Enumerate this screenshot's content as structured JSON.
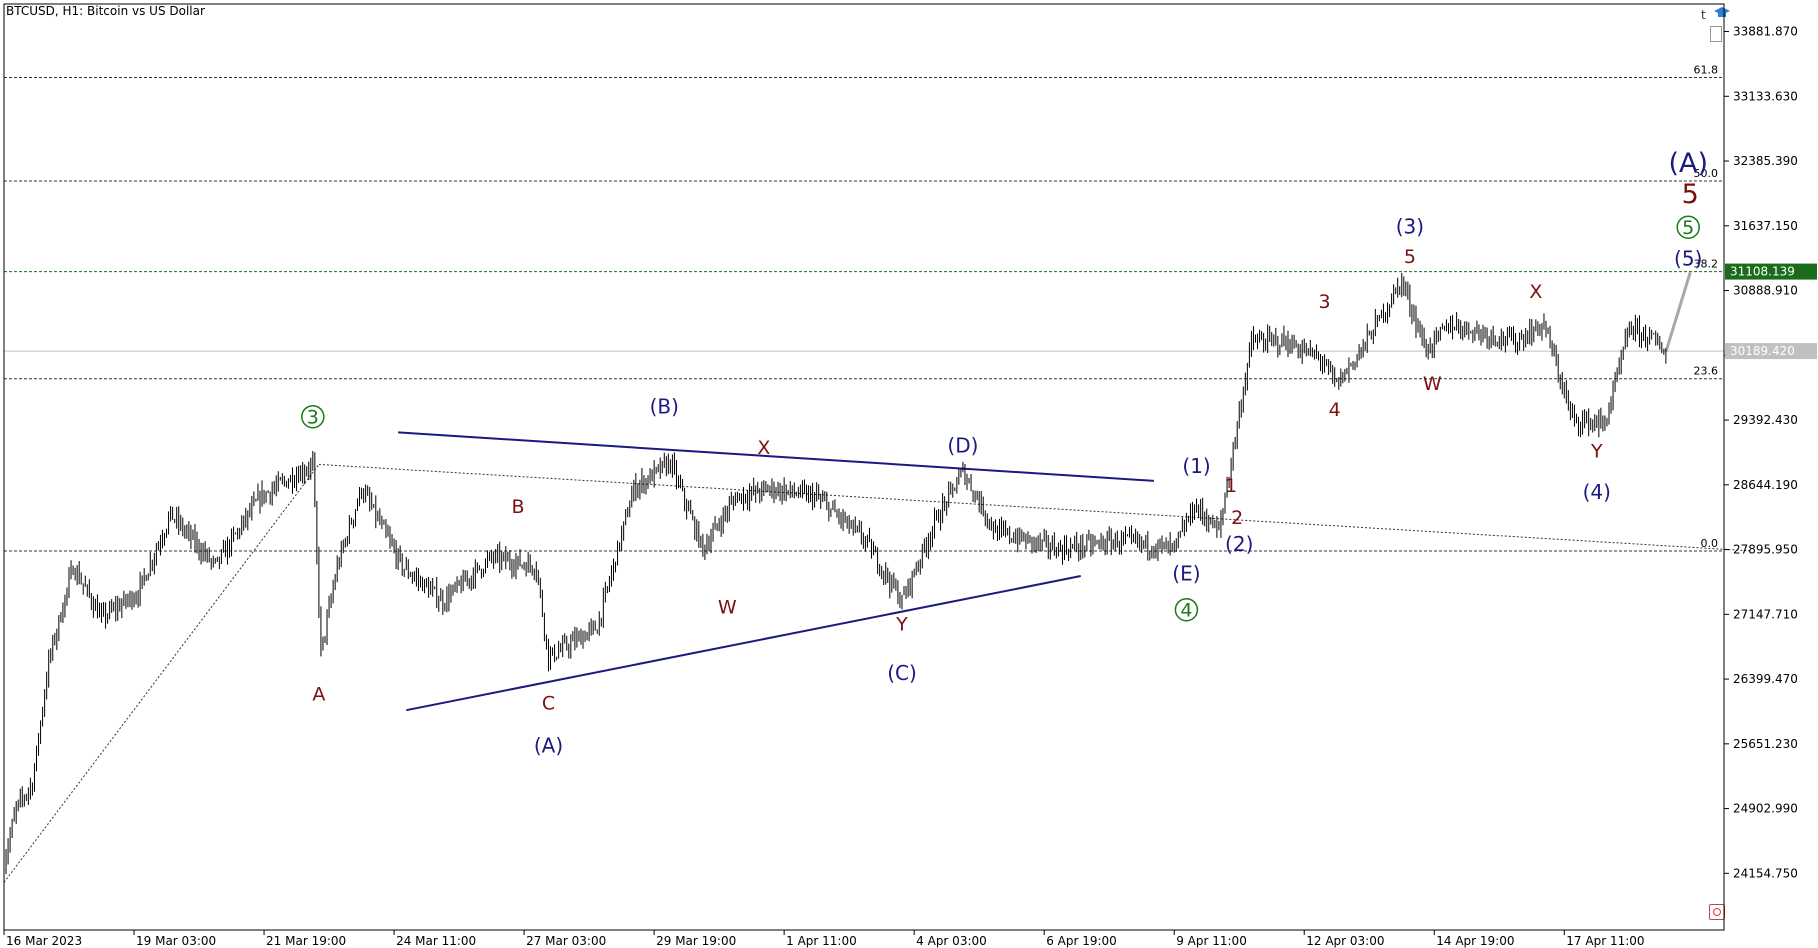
{
  "header": {
    "symbol_title": "BTCUSD, H1:  Bitcoin vs US Dollar",
    "icon_t": "t"
  },
  "icons": [
    "graduation-cap-icon",
    "document-icon",
    "close-icon"
  ],
  "chart_data": {
    "type": "candlestick",
    "title": "BTCUSD, H1:  Bitcoin vs US Dollar",
    "price_axis": {
      "range": [
        23500,
        34200
      ],
      "ticks": [
        33881.87,
        33133.63,
        32385.39,
        31637.15,
        30888.91,
        30140.67,
        29392.43,
        28644.19,
        27895.95,
        27147.71,
        26399.47,
        25651.23,
        24902.99,
        24154.75
      ],
      "tick_labels": [
        "33881.870",
        "33133.630",
        "32385.390",
        "31637.150",
        "30888.910",
        "",
        "29392.430",
        "28644.190",
        "27895.950",
        "27147.710",
        "26399.470",
        "25651.230",
        "24902.990",
        "24154.750"
      ]
    },
    "time_axis": {
      "labels": [
        "16 Mar 2023",
        "19 Mar 03:00",
        "21 Mar 19:00",
        "24 Mar 11:00",
        "27 Mar 03:00",
        "29 Mar 19:00",
        "1 Apr 11:00",
        "4 Apr 03:00",
        "6 Apr 19:00",
        "9 Apr 11:00",
        "12 Apr 03:00",
        "14 Apr 19:00",
        "17 Apr 11:00"
      ],
      "label_bar_index": [
        0,
        64,
        128,
        192,
        256,
        320,
        384,
        448,
        512,
        576,
        640,
        704,
        768
      ],
      "total_bars": 822
    },
    "price_waypoints": [
      {
        "i": 0,
        "p": 24300
      },
      {
        "i": 6,
        "p": 24900
      },
      {
        "i": 14,
        "p": 25200
      },
      {
        "i": 22,
        "p": 26600
      },
      {
        "i": 34,
        "p": 27700
      },
      {
        "i": 48,
        "p": 27100
      },
      {
        "i": 66,
        "p": 27400
      },
      {
        "i": 82,
        "p": 28300
      },
      {
        "i": 104,
        "p": 27700
      },
      {
        "i": 126,
        "p": 28500
      },
      {
        "i": 152,
        "p": 28880
      },
      {
        "i": 156,
        "p": 26700
      },
      {
        "i": 164,
        "p": 27700
      },
      {
        "i": 176,
        "p": 28600
      },
      {
        "i": 196,
        "p": 27700
      },
      {
        "i": 216,
        "p": 27300
      },
      {
        "i": 240,
        "p": 27800
      },
      {
        "i": 262,
        "p": 27700
      },
      {
        "i": 268,
        "p": 26650
      },
      {
        "i": 292,
        "p": 27000
      },
      {
        "i": 310,
        "p": 28600
      },
      {
        "i": 328,
        "p": 28900
      },
      {
        "i": 344,
        "p": 27900
      },
      {
        "i": 360,
        "p": 28500
      },
      {
        "i": 378,
        "p": 28600
      },
      {
        "i": 400,
        "p": 28500
      },
      {
        "i": 424,
        "p": 28000
      },
      {
        "i": 442,
        "p": 27300
      },
      {
        "i": 458,
        "p": 28200
      },
      {
        "i": 472,
        "p": 28800
      },
      {
        "i": 488,
        "p": 28100
      },
      {
        "i": 520,
        "p": 27900
      },
      {
        "i": 550,
        "p": 28000
      },
      {
        "i": 576,
        "p": 27900
      },
      {
        "i": 586,
        "p": 28400
      },
      {
        "i": 598,
        "p": 28100
      },
      {
        "i": 614,
        "p": 30300
      },
      {
        "i": 630,
        "p": 30300
      },
      {
        "i": 648,
        "p": 30100
      },
      {
        "i": 656,
        "p": 29800
      },
      {
        "i": 668,
        "p": 30200
      },
      {
        "i": 688,
        "p": 31000
      },
      {
        "i": 700,
        "p": 30200
      },
      {
        "i": 712,
        "p": 30500
      },
      {
        "i": 744,
        "p": 30300
      },
      {
        "i": 758,
        "p": 30500
      },
      {
        "i": 772,
        "p": 29400
      },
      {
        "i": 788,
        "p": 29350
      },
      {
        "i": 800,
        "p": 30450
      },
      {
        "i": 810,
        "p": 30350
      },
      {
        "i": 818,
        "p": 30180
      }
    ],
    "horizontal_levels": [
      {
        "label": "61.8",
        "price": 33350
      },
      {
        "label": "50.0",
        "price": 32155
      },
      {
        "label": "38.2",
        "price": 31108.139,
        "green": true
      },
      {
        "label": "23.6",
        "price": 29870
      },
      {
        "label": "0.0",
        "price": 27880
      }
    ],
    "current_price": {
      "value": "30189.420",
      "price": 30189.42
    },
    "level_badge": {
      "value": "31108.139",
      "price": 31108.139
    },
    "wave_labels": [
      {
        "text": "3",
        "i": 152,
        "p": 29350,
        "style": "circle-green"
      },
      {
        "text": "A",
        "i": 155,
        "p": 26150,
        "style": "red"
      },
      {
        "text": "B",
        "i": 253,
        "p": 28320,
        "style": "red"
      },
      {
        "text": "C",
        "i": 268,
        "p": 26050,
        "style": "red"
      },
      {
        "text": "(A)",
        "i": 268,
        "p": 25550,
        "style": "navy"
      },
      {
        "text": "(B)",
        "i": 325,
        "p": 29470,
        "style": "navy"
      },
      {
        "text": "W",
        "i": 356,
        "p": 27160,
        "style": "red"
      },
      {
        "text": "X",
        "i": 374,
        "p": 29000,
        "style": "red"
      },
      {
        "text": "Y",
        "i": 442,
        "p": 26960,
        "style": "red"
      },
      {
        "text": "(C)",
        "i": 442,
        "p": 26390,
        "style": "navy"
      },
      {
        "text": "(D)",
        "i": 472,
        "p": 29020,
        "style": "navy"
      },
      {
        "text": "(E)",
        "i": 582,
        "p": 27540,
        "style": "navy"
      },
      {
        "text": "4",
        "i": 582,
        "p": 27120,
        "style": "circle-green"
      },
      {
        "text": "(1)",
        "i": 587,
        "p": 28780,
        "style": "navy"
      },
      {
        "text": "1",
        "i": 604,
        "p": 28560,
        "style": "red"
      },
      {
        "text": "2",
        "i": 607,
        "p": 28190,
        "style": "red"
      },
      {
        "text": "(2)",
        "i": 608,
        "p": 27880,
        "style": "navy"
      },
      {
        "text": "3",
        "i": 650,
        "p": 30690,
        "style": "red"
      },
      {
        "text": "4",
        "i": 655,
        "p": 29440,
        "style": "red"
      },
      {
        "text": "(3)",
        "i": 692,
        "p": 31550,
        "style": "navy"
      },
      {
        "text": "5",
        "i": 692,
        "p": 31210,
        "style": "red"
      },
      {
        "text": "W",
        "i": 703,
        "p": 29740,
        "style": "red"
      },
      {
        "text": "X",
        "i": 754,
        "p": 30800,
        "style": "red"
      },
      {
        "text": "Y",
        "i": 784,
        "p": 28960,
        "style": "red"
      },
      {
        "text": "(4)",
        "i": 784,
        "p": 28480,
        "style": "navy"
      },
      {
        "text": "(A)",
        "i": 829,
        "p": 32260,
        "style": "navy-big"
      },
      {
        "text": "5",
        "i": 830,
        "p": 31900,
        "style": "red-big"
      },
      {
        "text": "5",
        "i": 829,
        "p": 31540,
        "style": "circle-green"
      },
      {
        "text": "(5)",
        "i": 829,
        "p": 31180,
        "style": "navy"
      }
    ],
    "trend_lines": [
      {
        "from": {
          "i": 194,
          "p": 29250
        },
        "to": {
          "i": 566,
          "p": 28690
        },
        "style": "navy"
      },
      {
        "from": {
          "i": 198,
          "p": 26040
        },
        "to": {
          "i": 530,
          "p": 27590
        },
        "style": "navy"
      },
      {
        "from": {
          "i": 0,
          "p": 24050
        },
        "to": {
          "i": 155,
          "p": 28880
        },
        "style": "dotted"
      },
      {
        "from": {
          "i": 155,
          "p": 28880
        },
        "to": {
          "i": 860,
          "p": 27880
        },
        "style": "dotted"
      },
      {
        "from": {
          "i": 818,
          "p": 30180
        },
        "to": {
          "i": 830,
          "p": 31100
        },
        "style": "projection"
      }
    ]
  }
}
